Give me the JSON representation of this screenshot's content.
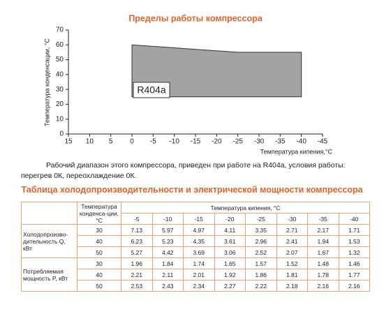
{
  "chart_data": {
    "type": "polygon",
    "title": "Пределы работы компрессора",
    "y_label": "Температура конденсации, °C",
    "x_label": "Температура кипения,°C",
    "xlim": [
      15,
      -45
    ],
    "xticks": [
      15,
      10,
      5,
      0,
      -5,
      -10,
      -15,
      -20,
      -25,
      -30,
      -35,
      -40,
      -45
    ],
    "ylim": [
      0,
      70
    ],
    "yticks": [
      0,
      10,
      20,
      30,
      40,
      50,
      60,
      70
    ],
    "series": [
      {
        "name": "R404a",
        "color": "#a3a3a3",
        "x": [
          0,
          0,
          -25,
          -40,
          -40
        ],
        "values": [
          25,
          60,
          55,
          55,
          25
        ]
      }
    ]
  },
  "note": "Рабочий диапазон этого компрессора, приведен при работе на R404a, условия работы: перегрев 0К, переохлаждение 0К.",
  "table": {
    "title": "Таблица холодопроизводительности и электрической мощности компрессора",
    "condensing_header": "Температура конденса-ции, °C",
    "evaporating_header": "Температура кипения, °C",
    "columns": [
      -5,
      -10,
      -15,
      -20,
      -25,
      -30,
      -35,
      -40
    ],
    "groups": [
      {
        "label": "Холодопроизво-дительность Q, кВт",
        "rows": [
          {
            "condensing": 30,
            "values": [
              7.13,
              5.97,
              4.97,
              4.11,
              3.35,
              2.71,
              2.17,
              1.71
            ]
          },
          {
            "condensing": 40,
            "values": [
              6.23,
              5.23,
              4.35,
              3.61,
              2.96,
              2.41,
              1.94,
              1.53
            ]
          },
          {
            "condensing": 50,
            "values": [
              5.27,
              4.42,
              3.69,
              3.06,
              2.52,
              2.07,
              1.67,
              1.32
            ]
          }
        ]
      },
      {
        "label": "Потребляемая мощность P, кВт",
        "rows": [
          {
            "condensing": 30,
            "values": [
              1.96,
              1.84,
              1.74,
              1.65,
              1.57,
              1.52,
              1.48,
              1.46
            ]
          },
          {
            "condensing": 40,
            "values": [
              2.21,
              2.11,
              2.01,
              1.92,
              1.86,
              1.81,
              1.78,
              1.77
            ]
          },
          {
            "condensing": 50,
            "values": [
              2.53,
              2.43,
              2.34,
              2.27,
              2.22,
              2.18,
              2.16,
              2.16
            ]
          }
        ]
      }
    ]
  }
}
